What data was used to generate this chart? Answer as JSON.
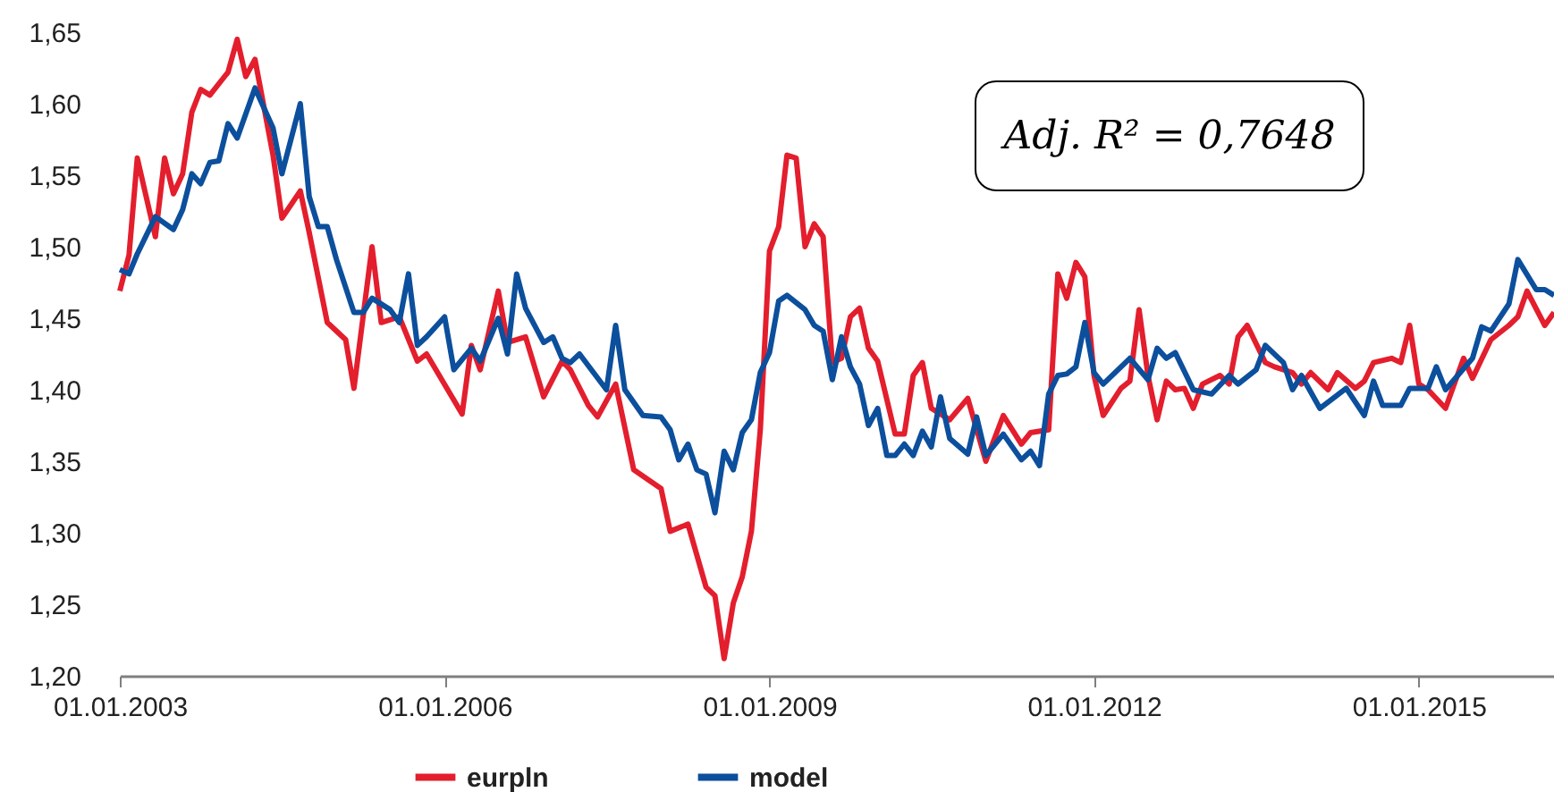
{
  "chart_data": {
    "type": "line",
    "annotations": [
      "Adj. R² = 0,7648"
    ],
    "xlim": [
      "2003-01-01",
      "2016-04-01"
    ],
    "xticks": [
      {
        "value": "2003-01-01",
        "label": "01.01.2003"
      },
      {
        "value": "2006-01-01",
        "label": "01.01.2006"
      },
      {
        "value": "2009-01-01",
        "label": "01.01.2009"
      },
      {
        "value": "2012-01-01",
        "label": "01.01.2012"
      },
      {
        "value": "2015-01-01",
        "label": "01.01.2015"
      }
    ],
    "ylim": [
      1.2,
      1.65
    ],
    "yticks": [
      {
        "value": 1.2,
        "label": "1,20"
      },
      {
        "value": 1.25,
        "label": "1,25"
      },
      {
        "value": 1.3,
        "label": "1,30"
      },
      {
        "value": 1.35,
        "label": "1,35"
      },
      {
        "value": 1.4,
        "label": "1,40"
      },
      {
        "value": 1.45,
        "label": "1,45"
      },
      {
        "value": 1.5,
        "label": "1,50"
      },
      {
        "value": 1.55,
        "label": "1,55"
      },
      {
        "value": 1.6,
        "label": "1,60"
      },
      {
        "value": 1.65,
        "label": "1,65"
      }
    ],
    "grid": false,
    "legend": "bottom",
    "line_style": "solid",
    "series": [
      {
        "name": "eurpln",
        "color": "#e31e2d",
        "x": [
          "2003-01",
          "2003-02",
          "2003-03",
          "2003-05",
          "2003-06",
          "2003-07",
          "2003-08",
          "2003-09",
          "2003-10",
          "2003-11",
          "2004-01",
          "2004-02",
          "2004-03",
          "2004-04",
          "2004-06",
          "2004-07",
          "2004-09",
          "2004-10",
          "2004-12",
          "2005-02",
          "2005-03",
          "2005-05",
          "2005-06",
          "2005-08",
          "2005-10",
          "2005-11",
          "2006-03",
          "2006-04",
          "2006-05",
          "2006-07",
          "2006-08",
          "2006-10",
          "2006-12",
          "2007-02",
          "2007-03",
          "2007-05",
          "2007-06",
          "2007-08",
          "2007-10",
          "2008-01",
          "2008-02",
          "2008-04",
          "2008-06",
          "2008-07",
          "2008-08",
          "2008-09",
          "2008-10",
          "2008-11",
          "2008-12",
          "2009-01",
          "2009-02",
          "2009-03",
          "2009-04",
          "2009-05",
          "2009-06",
          "2009-07",
          "2009-08",
          "2009-09",
          "2009-10",
          "2009-11",
          "2009-12",
          "2010-01",
          "2010-03",
          "2010-04",
          "2010-05",
          "2010-06",
          "2010-07",
          "2010-09",
          "2010-11",
          "2011-01",
          "2011-03",
          "2011-05",
          "2011-06",
          "2011-08",
          "2011-09",
          "2011-10",
          "2011-11",
          "2011-12",
          "2012-01",
          "2012-02",
          "2012-04",
          "2012-05",
          "2012-06",
          "2012-07",
          "2012-08",
          "2012-09",
          "2012-10",
          "2012-11",
          "2012-12",
          "2013-01",
          "2013-03",
          "2013-04",
          "2013-05",
          "2013-06",
          "2013-08",
          "2013-09",
          "2013-11",
          "2013-12",
          "2014-01",
          "2014-03",
          "2014-04",
          "2014-06",
          "2014-07",
          "2014-08",
          "2014-10",
          "2014-11",
          "2014-12",
          "2015-01",
          "2015-02",
          "2015-04",
          "2015-06",
          "2015-07",
          "2015-09",
          "2015-11",
          "2015-12",
          "2016-01",
          "2016-03",
          "2016-04"
        ],
        "values": [
          1.469,
          1.494,
          1.562,
          1.507,
          1.562,
          1.537,
          1.551,
          1.594,
          1.61,
          1.606,
          1.622,
          1.645,
          1.619,
          1.631,
          1.564,
          1.52,
          1.539,
          1.51,
          1.447,
          1.435,
          1.401,
          1.5,
          1.447,
          1.451,
          1.42,
          1.425,
          1.383,
          1.431,
          1.414,
          1.469,
          1.433,
          1.437,
          1.395,
          1.42,
          1.414,
          1.389,
          1.381,
          1.404,
          1.344,
          1.331,
          1.301,
          1.306,
          1.262,
          1.256,
          1.212,
          1.251,
          1.269,
          1.301,
          1.372,
          1.497,
          1.514,
          1.564,
          1.562,
          1.5,
          1.516,
          1.507,
          1.419,
          1.422,
          1.451,
          1.457,
          1.429,
          1.42,
          1.369,
          1.369,
          1.41,
          1.419,
          1.387,
          1.379,
          1.394,
          1.35,
          1.382,
          1.362,
          1.37,
          1.372,
          1.481,
          1.464,
          1.489,
          1.479,
          1.41,
          1.382,
          1.401,
          1.406,
          1.456,
          1.41,
          1.379,
          1.406,
          1.4,
          1.401,
          1.387,
          1.404,
          1.41,
          1.404,
          1.437,
          1.445,
          1.419,
          1.416,
          1.412,
          1.404,
          1.412,
          1.4,
          1.412,
          1.401,
          1.406,
          1.419,
          1.422,
          1.419,
          1.445,
          1.404,
          1.4,
          1.387,
          1.422,
          1.408,
          1.435,
          1.445,
          1.451,
          1.469,
          1.445,
          1.454
        ]
      },
      {
        "name": "model",
        "color": "#0c4f9c",
        "x": [
          "2003-01",
          "2003-02",
          "2003-03",
          "2003-05",
          "2003-07",
          "2003-08",
          "2003-09",
          "2003-10",
          "2003-11",
          "2003-12",
          "2004-01",
          "2004-02",
          "2004-04",
          "2004-06",
          "2004-07",
          "2004-09",
          "2004-10",
          "2004-11",
          "2004-12",
          "2005-01",
          "2005-03",
          "2005-04",
          "2005-05",
          "2005-07",
          "2005-08",
          "2005-09",
          "2005-10",
          "2005-11",
          "2006-01",
          "2006-02",
          "2006-04",
          "2006-05",
          "2006-07",
          "2006-08",
          "2006-09",
          "2006-10",
          "2006-12",
          "2007-01",
          "2007-02",
          "2007-03",
          "2007-04",
          "2007-07",
          "2007-08",
          "2007-09",
          "2007-11",
          "2008-01",
          "2008-02",
          "2008-03",
          "2008-04",
          "2008-05",
          "2008-06",
          "2008-07",
          "2008-08",
          "2008-09",
          "2008-10",
          "2008-11",
          "2008-12",
          "2009-01",
          "2009-02",
          "2009-03",
          "2009-05",
          "2009-06",
          "2009-07",
          "2009-08",
          "2009-09",
          "2009-10",
          "2009-11",
          "2009-12",
          "2010-01",
          "2010-02",
          "2010-03",
          "2010-04",
          "2010-05",
          "2010-06",
          "2010-07",
          "2010-08",
          "2010-09",
          "2010-11",
          "2010-12",
          "2011-01",
          "2011-03",
          "2011-05",
          "2011-06",
          "2011-07",
          "2011-08",
          "2011-09",
          "2011-10",
          "2011-11",
          "2011-12",
          "2012-01",
          "2012-02",
          "2012-05",
          "2012-07",
          "2012-08",
          "2012-09",
          "2012-10",
          "2012-12",
          "2013-02",
          "2013-04",
          "2013-05",
          "2013-07",
          "2013-08",
          "2013-10",
          "2013-11",
          "2013-12",
          "2014-02",
          "2014-05",
          "2014-07",
          "2014-08",
          "2014-09",
          "2014-11",
          "2014-12",
          "2015-02",
          "2015-03",
          "2015-04",
          "2015-07",
          "2015-08",
          "2015-09",
          "2015-11",
          "2015-12",
          "2016-02",
          "2016-03",
          "2016-04"
        ],
        "values": [
          1.484,
          1.481,
          1.495,
          1.521,
          1.512,
          1.526,
          1.551,
          1.544,
          1.559,
          1.56,
          1.586,
          1.576,
          1.611,
          1.583,
          1.551,
          1.6,
          1.535,
          1.514,
          1.514,
          1.491,
          1.454,
          1.454,
          1.464,
          1.456,
          1.447,
          1.481,
          1.431,
          1.437,
          1.451,
          1.414,
          1.429,
          1.42,
          1.45,
          1.425,
          1.481,
          1.457,
          1.433,
          1.437,
          1.422,
          1.419,
          1.425,
          1.4,
          1.445,
          1.4,
          1.382,
          1.381,
          1.372,
          1.351,
          1.362,
          1.344,
          1.341,
          1.314,
          1.357,
          1.344,
          1.37,
          1.379,
          1.412,
          1.426,
          1.462,
          1.466,
          1.456,
          1.445,
          1.441,
          1.407,
          1.437,
          1.416,
          1.404,
          1.375,
          1.387,
          1.354,
          1.354,
          1.362,
          1.354,
          1.371,
          1.36,
          1.395,
          1.366,
          1.355,
          1.381,
          1.354,
          1.369,
          1.351,
          1.357,
          1.347,
          1.397,
          1.41,
          1.411,
          1.416,
          1.447,
          1.412,
          1.404,
          1.422,
          1.407,
          1.429,
          1.422,
          1.426,
          1.4,
          1.397,
          1.41,
          1.404,
          1.414,
          1.431,
          1.419,
          1.4,
          1.41,
          1.387,
          1.401,
          1.382,
          1.406,
          1.389,
          1.389,
          1.401,
          1.401,
          1.416,
          1.4,
          1.422,
          1.444,
          1.441,
          1.46,
          1.491,
          1.47,
          1.47,
          1.466
        ]
      }
    ]
  }
}
